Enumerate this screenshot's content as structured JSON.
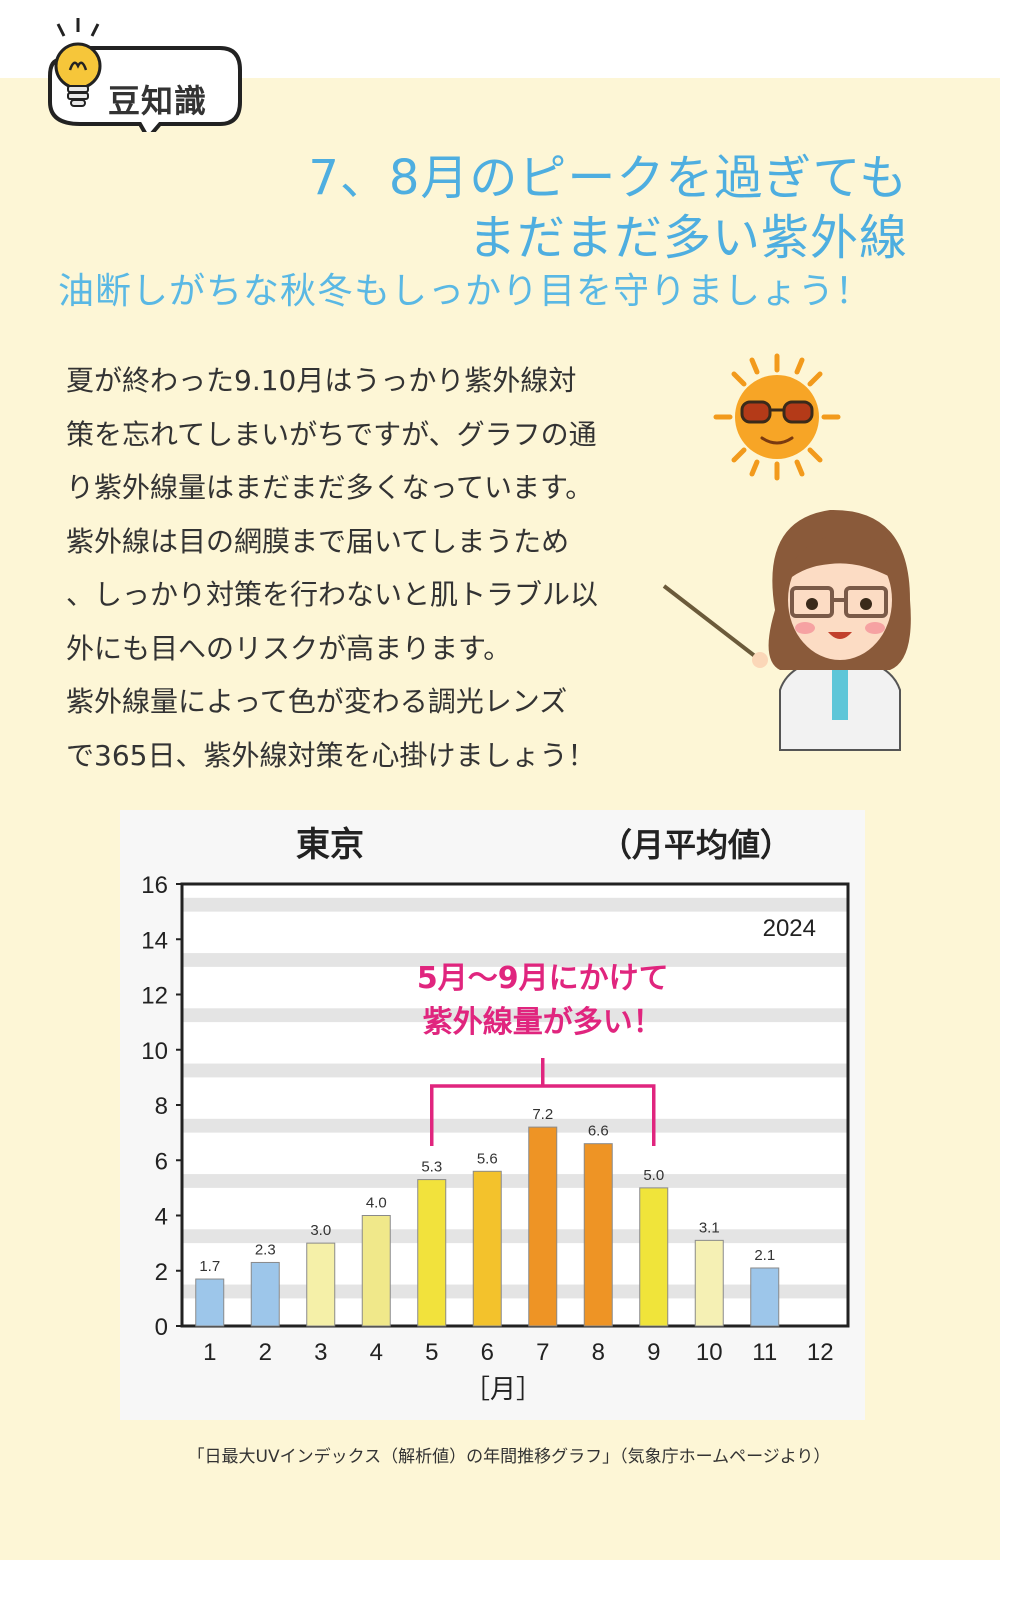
{
  "badge": {
    "label": "豆知識",
    "icon": "lightbulb-icon"
  },
  "header": {
    "title_line1": "7、8月のピークを過ぎても",
    "title_line2": "まだまだ多い紫外線",
    "subtitle": "油断しがちな秋冬もしっかり目を守りましょう！"
  },
  "body": {
    "lines": [
      "夏が終わった9.10月はうっかり紫外線対",
      "策を忘れてしまいがちですが、グラフの通",
      "り紫外線量はまだまだ多くなっています。",
      "紫外線は目の網膜まで届いてしまうため",
      "、しっかり対策を行わないと肌トラブル以",
      "外にも目へのリスクが高まります。",
      "紫外線量によって色が変わる調光レンズ",
      "で365日、紫外線対策を心掛けましょう！"
    ]
  },
  "illustrations": {
    "sun": "sun-with-sunglasses-icon",
    "teacher": "teacher-with-pointer-icon"
  },
  "chart_data": {
    "type": "bar",
    "title": "東京",
    "subtitle": "（月平均値）",
    "year_label": "2024",
    "categories": [
      "1",
      "2",
      "3",
      "4",
      "5",
      "6",
      "7",
      "8",
      "9",
      "10",
      "11",
      "12"
    ],
    "values": [
      1.7,
      2.3,
      3.0,
      4.0,
      5.3,
      5.6,
      7.2,
      6.6,
      5.0,
      3.1,
      2.1,
      null
    ],
    "value_labels": [
      "1.7",
      "2.3",
      "3.0",
      "4.0",
      "5.3",
      "5.6",
      "7.2",
      "6.6",
      "5.0",
      "3.1",
      "2.1",
      ""
    ],
    "bar_colors": [
      "#9dc6ea",
      "#9dc6ea",
      "#f5f0a8",
      "#f0e88a",
      "#f2e23c",
      "#f3c22c",
      "#ee9425",
      "#ee9425",
      "#f0e43a",
      "#f5f0b4",
      "#9dc6ea",
      "#9dc6ea"
    ],
    "xlabel": "［月］",
    "ylabel": "",
    "ylim": [
      0,
      16
    ],
    "yticks": [
      0,
      2,
      4,
      6,
      8,
      10,
      12,
      14,
      16
    ],
    "grid": true,
    "annotation": {
      "line1": "5月～9月にかけて",
      "line2": "紫外線量が多い！",
      "from": "5",
      "to": "9",
      "color": "#e0257e"
    }
  },
  "caption": "「日最大UVインデックス（解析値）の年間推移グラフ」（気象庁ホームページより）"
}
